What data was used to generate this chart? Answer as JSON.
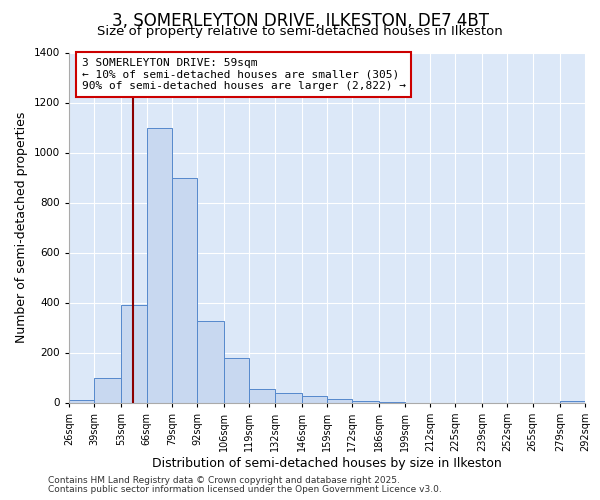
{
  "title": "3, SOMERLEYTON DRIVE, ILKESTON, DE7 4BT",
  "subtitle": "Size of property relative to semi-detached houses in Ilkeston",
  "xlabel": "Distribution of semi-detached houses by size in Ilkeston",
  "ylabel": "Number of semi-detached properties",
  "bin_edges": [
    26,
    39,
    53,
    66,
    79,
    92,
    106,
    119,
    132,
    146,
    159,
    172,
    186,
    199,
    212,
    225,
    239,
    252,
    265,
    279,
    292
  ],
  "bar_heights": [
    10,
    100,
    390,
    1100,
    900,
    325,
    180,
    55,
    40,
    25,
    15,
    8,
    3,
    0,
    0,
    0,
    0,
    0,
    0,
    5
  ],
  "bar_color": "#c8d8f0",
  "bar_edge_color": "#5588cc",
  "property_line_x": 59,
  "property_line_color": "#8b0000",
  "annotation_title": "3 SOMERLEYTON DRIVE: 59sqm",
  "annotation_line1": "← 10% of semi-detached houses are smaller (305)",
  "annotation_line2": "90% of semi-detached houses are larger (2,822) →",
  "annotation_box_facecolor": "#ffffff",
  "annotation_border_color": "#cc0000",
  "ylim": [
    0,
    1400
  ],
  "yticks": [
    0,
    200,
    400,
    600,
    800,
    1000,
    1200,
    1400
  ],
  "plot_bg_color": "#dce8f8",
  "fig_bg_color": "#ffffff",
  "grid_color": "#ffffff",
  "footer1": "Contains HM Land Registry data © Crown copyright and database right 2025.",
  "footer2": "Contains public sector information licensed under the Open Government Licence v3.0.",
  "title_fontsize": 12,
  "subtitle_fontsize": 9.5,
  "tick_label_fontsize": 7,
  "axis_label_fontsize": 9,
  "annotation_fontsize": 8
}
